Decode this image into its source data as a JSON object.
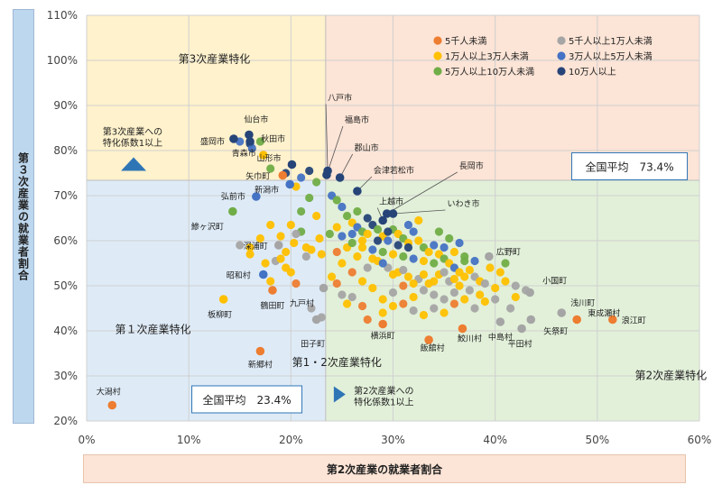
{
  "chart_data": {
    "type": "scatter",
    "title": "",
    "xlabel": "第2次産業の就業者割合",
    "ylabel": "第３次産業の就業者割合",
    "xlim": [
      0,
      60
    ],
    "ylim": [
      20,
      110
    ],
    "xticks": [
      "0%",
      "10%",
      "20%",
      "30%",
      "40%",
      "50%",
      "60%"
    ],
    "yticks": [
      "20%",
      "30%",
      "40%",
      "50%",
      "60%",
      "70%",
      "80%",
      "90%",
      "100%",
      "110%"
    ],
    "xticks_values": [
      0,
      10,
      20,
      30,
      40,
      50,
      60
    ],
    "yticks_values": [
      20,
      30,
      40,
      50,
      60,
      70,
      80,
      90,
      100,
      110
    ],
    "averages": {
      "x": 23.4,
      "y": 73.4
    },
    "quadrant_labels": {
      "tertiary": "第3次産業特化",
      "primary": "第１次産業特化",
      "primary_secondary": "第1・2次産業特化",
      "secondary": "第2次産業特化"
    },
    "avg_box_y": "全国平均　73.4%",
    "avg_box_x": "全国平均　23.4%",
    "note_tertiary": [
      "第3次産業への",
      "特化係数1以上"
    ],
    "note_secondary": [
      "第2次産業への",
      "特化係数1以上"
    ],
    "colors": {
      "under5k": "#ed7d31",
      "5k_10k": "#a5a5a5",
      "10k_30k": "#ffc000",
      "30k_50k": "#4472c4",
      "50k_100k": "#70ad47",
      "over100k": "#264478",
      "top_bg": "#fff2cc",
      "topright_bg": "#fce4d6",
      "bottomleft_bg": "#deebf7",
      "bottomright_bg": "#e2f0d9",
      "arrow": "#2e75b6"
    },
    "legend": [
      {
        "key": "under5k",
        "label": "5千人未満"
      },
      {
        "key": "5k_10k",
        "label": "5千人以上1万人未満"
      },
      {
        "key": "10k_30k",
        "label": "1万人以上3万人未満"
      },
      {
        "key": "30k_50k",
        "label": "3万人以上5万人未満"
      },
      {
        "key": "50k_100k",
        "label": "5万人以上10万人未満"
      },
      {
        "key": "over100k",
        "label": "10万人以上"
      }
    ],
    "labeled_points": [
      {
        "name": "八戸市",
        "x": 23.6,
        "y": 75.5
      },
      {
        "name": "福島市",
        "x": 23.5,
        "y": 74.6
      },
      {
        "name": "郡山市",
        "x": 24.8,
        "y": 74.0
      },
      {
        "name": "会津若松市",
        "x": 26.5,
        "y": 71.0
      },
      {
        "name": "長岡市",
        "x": 29.4,
        "y": 66.0
      },
      {
        "name": "上越市",
        "x": 29.0,
        "y": 64.5
      },
      {
        "name": "いわき市",
        "x": 30.0,
        "y": 66.0
      },
      {
        "name": "仙台市",
        "x": 15.9,
        "y": 83.5
      },
      {
        "name": "秋田市",
        "x": 16.0,
        "y": 82.0
      },
      {
        "name": "盛岡市",
        "x": 14.4,
        "y": 82.6
      },
      {
        "name": "青森市",
        "x": 17.3,
        "y": 79.0
      },
      {
        "name": "山形市",
        "x": 20.1,
        "y": 76.9
      },
      {
        "name": "矢巾町",
        "x": 19.2,
        "y": 74.5
      },
      {
        "name": "新潟市",
        "x": 19.9,
        "y": 72.5
      },
      {
        "name": "弘前市",
        "x": 16.6,
        "y": 69.8
      },
      {
        "name": "鰺ヶ沢町",
        "x": 14.3,
        "y": 66.5
      },
      {
        "name": "深浦町",
        "x": 18.8,
        "y": 59.0
      },
      {
        "name": "昭和村",
        "x": 17.3,
        "y": 52.5
      },
      {
        "name": "板柳町",
        "x": 13.4,
        "y": 47.0
      },
      {
        "name": "鶴田町",
        "x": 18.2,
        "y": 49.0
      },
      {
        "name": "九戸村",
        "x": 23.2,
        "y": 49.5
      },
      {
        "name": "田子町",
        "x": 22.5,
        "y": 42.5
      },
      {
        "name": "新郷村",
        "x": 17.0,
        "y": 35.5
      },
      {
        "name": "大潟村",
        "x": 2.5,
        "y": 23.5
      },
      {
        "name": "広野町",
        "x": 39.4,
        "y": 56.5
      },
      {
        "name": "小国町",
        "x": 43.4,
        "y": 48.5
      },
      {
        "name": "浅川町",
        "x": 46.5,
        "y": 44.0
      },
      {
        "name": "東成瀬村",
        "x": 48.0,
        "y": 42.5
      },
      {
        "name": "浪江町",
        "x": 51.5,
        "y": 42.5
      },
      {
        "name": "矢祭町",
        "x": 43.5,
        "y": 42.5
      },
      {
        "name": "平田村",
        "x": 42.6,
        "y": 40.5
      },
      {
        "name": "中島村",
        "x": 40.5,
        "y": 42.0
      },
      {
        "name": "鮫川村",
        "x": 36.8,
        "y": 40.5
      },
      {
        "name": "飯舘村",
        "x": 33.5,
        "y": 38.0
      },
      {
        "name": "横浜町",
        "x": 29.0,
        "y": 41.5
      }
    ],
    "unlabeled_points": [
      [
        16.0,
        81.5,
        "over100k"
      ],
      [
        15.0,
        82.0,
        "30k_50k"
      ],
      [
        16.2,
        80.5,
        "30k_50k"
      ],
      [
        17.0,
        82.0,
        "50k_100k"
      ],
      [
        18.0,
        76.0,
        "50k_100k"
      ],
      [
        19.5,
        75.0,
        "over100k"
      ],
      [
        20.5,
        72.0,
        "10k_30k"
      ],
      [
        21.0,
        74.0,
        "30k_50k"
      ],
      [
        21.8,
        75.5,
        "over100k"
      ],
      [
        22.5,
        73.0,
        "50k_100k"
      ],
      [
        21.8,
        69.5,
        "50k_100k"
      ],
      [
        21.0,
        66.5,
        "50k_100k"
      ],
      [
        22.5,
        65.5,
        "10k_30k"
      ],
      [
        21.0,
        62.0,
        "50k_100k"
      ],
      [
        20.3,
        59.5,
        "10k_30k"
      ],
      [
        19.5,
        57.5,
        "10k_30k"
      ],
      [
        18.5,
        55.5,
        "5k_10k"
      ],
      [
        19.5,
        54.0,
        "10k_30k"
      ],
      [
        20.0,
        53.0,
        "10k_30k"
      ],
      [
        21.5,
        56.5,
        "5k_10k"
      ],
      [
        22.0,
        58.0,
        "10k_30k"
      ],
      [
        23.0,
        57.0,
        "10k_30k"
      ],
      [
        20.5,
        50.5,
        "under5k"
      ],
      [
        16.0,
        57.0,
        "10k_30k"
      ],
      [
        15.0,
        59.0,
        "5k_10k"
      ],
      [
        17.5,
        55.0,
        "10k_30k"
      ],
      [
        18.0,
        51.0,
        "10k_30k"
      ],
      [
        19.0,
        56.0,
        "10k_30k"
      ],
      [
        24.0,
        70.0,
        "30k_50k"
      ],
      [
        24.5,
        69.0,
        "50k_100k"
      ],
      [
        25.0,
        67.5,
        "30k_50k"
      ],
      [
        25.5,
        65.5,
        "50k_100k"
      ],
      [
        26.0,
        64.0,
        "10k_30k"
      ],
      [
        26.5,
        63.0,
        "30k_50k"
      ],
      [
        27.0,
        62.0,
        "50k_100k"
      ],
      [
        27.5,
        61.5,
        "10k_30k"
      ],
      [
        28.0,
        63.5,
        "over100k"
      ],
      [
        28.5,
        62.5,
        "50k_100k"
      ],
      [
        29.0,
        61.0,
        "10k_30k"
      ],
      [
        29.5,
        60.0,
        "30k_50k"
      ],
      [
        30.0,
        62.5,
        "50k_100k"
      ],
      [
        30.5,
        61.5,
        "10k_30k"
      ],
      [
        31.0,
        60.5,
        "50k_100k"
      ],
      [
        31.5,
        59.5,
        "10k_30k"
      ],
      [
        32.0,
        62.0,
        "30k_50k"
      ],
      [
        32.5,
        60.0,
        "10k_30k"
      ],
      [
        33.0,
        58.5,
        "50k_100k"
      ],
      [
        33.5,
        57.5,
        "10k_30k"
      ],
      [
        34.0,
        59.0,
        "30k_50k"
      ],
      [
        34.5,
        57.0,
        "10k_30k"
      ],
      [
        35.0,
        56.0,
        "50k_100k"
      ],
      [
        35.5,
        55.0,
        "10k_30k"
      ],
      [
        36.0,
        54.0,
        "30k_50k"
      ],
      [
        36.5,
        53.0,
        "10k_30k"
      ],
      [
        37.0,
        55.5,
        "50k_100k"
      ],
      [
        37.5,
        53.5,
        "10k_30k"
      ],
      [
        38.0,
        52.0,
        "5k_10k"
      ],
      [
        38.5,
        51.0,
        "10k_30k"
      ],
      [
        39.0,
        50.5,
        "5k_10k"
      ],
      [
        40.0,
        49.5,
        "10k_30k"
      ],
      [
        41.0,
        51.0,
        "10k_30k"
      ],
      [
        42.0,
        50.0,
        "5k_10k"
      ],
      [
        41.0,
        55.0,
        "50k_100k"
      ],
      [
        40.5,
        53.0,
        "10k_30k"
      ],
      [
        39.5,
        54.0,
        "10k_30k"
      ],
      [
        36.0,
        48.5,
        "5k_10k"
      ],
      [
        35.0,
        47.0,
        "5k_10k"
      ],
      [
        34.0,
        48.0,
        "5k_10k"
      ],
      [
        33.0,
        49.0,
        "5k_10k"
      ],
      [
        32.0,
        47.5,
        "10k_30k"
      ],
      [
        31.0,
        50.0,
        "under5k"
      ],
      [
        30.0,
        48.5,
        "5k_10k"
      ],
      [
        29.0,
        47.0,
        "10k_30k"
      ],
      [
        28.0,
        49.5,
        "10k_30k"
      ],
      [
        27.0,
        51.0,
        "10k_30k"
      ],
      [
        26.0,
        53.0,
        "under5k"
      ],
      [
        25.0,
        55.0,
        "10k_30k"
      ],
      [
        24.5,
        57.5,
        "under5k"
      ],
      [
        25.5,
        58.5,
        "10k_30k"
      ],
      [
        26.5,
        56.5,
        "10k_30k"
      ],
      [
        27.5,
        54.0,
        "5k_10k"
      ],
      [
        28.5,
        55.5,
        "10k_30k"
      ],
      [
        29.5,
        54.0,
        "5k_10k"
      ],
      [
        30.5,
        53.0,
        "10k_30k"
      ],
      [
        31.5,
        52.0,
        "10k_30k"
      ],
      [
        32.5,
        51.5,
        "5k_10k"
      ],
      [
        33.5,
        50.5,
        "10k_30k"
      ],
      [
        34.5,
        52.5,
        "10k_30k"
      ],
      [
        35.5,
        51.0,
        "5k_10k"
      ],
      [
        36.5,
        50.0,
        "10k_30k"
      ],
      [
        37.5,
        49.0,
        "5k_10k"
      ],
      [
        38.5,
        48.0,
        "10k_30k"
      ],
      [
        25.0,
        61.0,
        "30k_50k"
      ],
      [
        26.0,
        59.5,
        "50k_100k"
      ],
      [
        27.0,
        58.5,
        "10k_30k"
      ],
      [
        28.0,
        58.0,
        "30k_50k"
      ],
      [
        29.0,
        57.5,
        "50k_100k"
      ],
      [
        30.0,
        57.0,
        "10k_30k"
      ],
      [
        31.0,
        56.5,
        "50k_100k"
      ],
      [
        32.0,
        56.0,
        "30k_50k"
      ],
      [
        33.0,
        55.5,
        "10k_30k"
      ],
      [
        34.0,
        55.0,
        "50k_100k"
      ],
      [
        35.0,
        58.5,
        "30k_50k"
      ],
      [
        36.0,
        57.5,
        "10k_30k"
      ],
      [
        37.0,
        56.5,
        "50k_100k"
      ],
      [
        38.0,
        55.5,
        "30k_50k"
      ],
      [
        24.0,
        52.0,
        "10k_30k"
      ],
      [
        25.0,
        48.0,
        "5k_10k"
      ],
      [
        26.0,
        47.5,
        "5k_10k"
      ],
      [
        27.0,
        45.5,
        "under5k"
      ],
      [
        25.5,
        46.0,
        "10k_30k"
      ],
      [
        24.5,
        50.5,
        "under5k"
      ],
      [
        22.0,
        45.0,
        "5k_10k"
      ],
      [
        23.0,
        43.0,
        "5k_10k"
      ],
      [
        27.5,
        42.5,
        "under5k"
      ],
      [
        29.0,
        44.0,
        "10k_30k"
      ],
      [
        30.0,
        45.5,
        "10k_30k"
      ],
      [
        31.0,
        46.0,
        "under5k"
      ],
      [
        32.0,
        44.5,
        "5k_10k"
      ],
      [
        33.0,
        43.5,
        "10k_30k"
      ],
      [
        34.0,
        45.0,
        "5k_10k"
      ],
      [
        35.0,
        44.0,
        "10k_30k"
      ],
      [
        36.0,
        46.0,
        "under5k"
      ],
      [
        37.0,
        47.0,
        "10k_30k"
      ],
      [
        38.0,
        45.0,
        "5k_10k"
      ],
      [
        40.0,
        47.0,
        "5k_10k"
      ],
      [
        39.0,
        46.5,
        "10k_30k"
      ],
      [
        34.5,
        62.0,
        "50k_100k"
      ],
      [
        35.5,
        60.5,
        "50k_100k"
      ],
      [
        36.5,
        59.5,
        "30k_50k"
      ],
      [
        31.5,
        63.5,
        "30k_50k"
      ],
      [
        32.5,
        64.5,
        "10k_30k"
      ],
      [
        27.5,
        65.0,
        "over100k"
      ],
      [
        26.5,
        66.5,
        "50k_100k"
      ],
      [
        28.5,
        60.0,
        "over100k"
      ],
      [
        29.5,
        62.0,
        "over100k"
      ],
      [
        30.5,
        59.0,
        "over100k"
      ],
      [
        31.5,
        58.5,
        "over100k"
      ],
      [
        22.8,
        60.5,
        "10k_30k"
      ],
      [
        23.8,
        61.5,
        "50k_100k"
      ],
      [
        24.5,
        63.0,
        "10k_30k"
      ],
      [
        26.0,
        61.5,
        "30k_50k"
      ],
      [
        27.0,
        60.0,
        "10k_30k"
      ],
      [
        28.0,
        56.0,
        "10k_30k"
      ],
      [
        29.0,
        55.0,
        "30k_50k"
      ],
      [
        30.0,
        52.5,
        "10k_30k"
      ],
      [
        31.0,
        53.5,
        "5k_10k"
      ],
      [
        32.0,
        50.5,
        "10k_30k"
      ],
      [
        33.0,
        52.5,
        "10k_30k"
      ],
      [
        34.0,
        51.0,
        "10k_30k"
      ],
      [
        35.0,
        53.0,
        "5k_10k"
      ],
      [
        36.0,
        51.5,
        "10k_30k"
      ],
      [
        37.0,
        52.0,
        "10k_30k"
      ],
      [
        20.0,
        63.5,
        "10k_30k"
      ],
      [
        19.0,
        61.0,
        "10k_30k"
      ],
      [
        18.0,
        63.5,
        "10k_30k"
      ],
      [
        17.0,
        60.5,
        "10k_30k"
      ],
      [
        16.0,
        58.5,
        "10k_30k"
      ],
      [
        20.5,
        61.5,
        "5k_10k"
      ],
      [
        21.5,
        58.5,
        "10k_30k"
      ],
      [
        42.0,
        47.5,
        "10k_30k"
      ],
      [
        43.0,
        49.0,
        "5k_10k"
      ],
      [
        41.5,
        45.0,
        "5k_10k"
      ]
    ]
  }
}
